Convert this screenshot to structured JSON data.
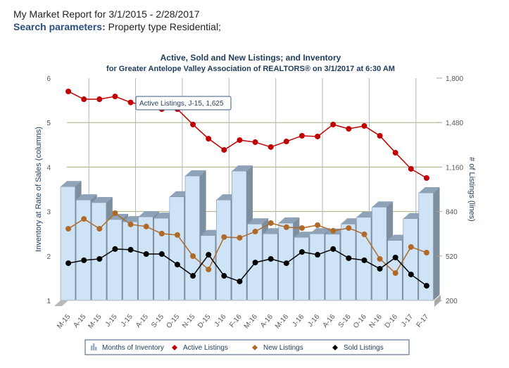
{
  "header": {
    "report_title": "My Market Report for 3/1/2015 - 2/28/2017",
    "search_label": "Search parameters:",
    "search_value": " Property type Residential;"
  },
  "tooltip": {
    "text": "Active Listings, J-15, 1,625"
  },
  "chart_data": {
    "type": "bar",
    "title": "Active, Sold and New Listings; and Inventory",
    "subtitle": "for Greater Antelope Valley Association of REALTORS® on 3/1/2017 at 6:30 AM",
    "ylabel": "Inventory at Rate of Sales (columns)",
    "y2label": "# of Listings (lines)",
    "ylim": [
      1,
      6
    ],
    "y2lim": [
      200,
      1800
    ],
    "yticks": [
      "1",
      "2",
      "3",
      "4",
      "5",
      "6"
    ],
    "y2ticks": [
      "200",
      "520",
      "840",
      "1,160",
      "1,480",
      "1,800"
    ],
    "grid": true,
    "legend_position": "bottom",
    "categories": [
      "M-15",
      "A-15",
      "M-15",
      "J-15",
      "J-15",
      "A-15",
      "S-15",
      "O-15",
      "N-15",
      "D-15",
      "J-16",
      "F-16",
      "M-16",
      "A-16",
      "M-16",
      "J-16",
      "J-16",
      "A-16",
      "S-16",
      "O-16",
      "N-16",
      "D-16",
      "J-17",
      "F-17"
    ],
    "series": [
      {
        "name": "Months of Inventory",
        "type": "bar",
        "axis": "left",
        "color": "#cfe3f7",
        "values": [
          3.56,
          3.26,
          3.2,
          2.82,
          2.77,
          2.88,
          2.85,
          3.33,
          3.8,
          2.46,
          3.26,
          3.91,
          2.72,
          2.5,
          2.74,
          2.42,
          2.5,
          2.49,
          2.72,
          2.87,
          3.1,
          2.35,
          2.84,
          3.42
        ]
      },
      {
        "name": "Active Listings",
        "type": "line",
        "axis": "right",
        "color": "#c00000",
        "values": [
          1704,
          1648,
          1648,
          1668,
          1625,
          1602,
          1577,
          1577,
          1466,
          1364,
          1283,
          1354,
          1339,
          1304,
          1344,
          1385,
          1380,
          1466,
          1435,
          1456,
          1385,
          1263,
          1147,
          1081
        ]
      },
      {
        "name": "New Listings",
        "type": "line",
        "axis": "right",
        "color": "#b06a28",
        "values": [
          716,
          787,
          716,
          828,
          747,
          732,
          681,
          671,
          519,
          423,
          656,
          651,
          696,
          757,
          727,
          721,
          742,
          701,
          721,
          676,
          499,
          397,
          585,
          544
        ]
      },
      {
        "name": "Sold Listings",
        "type": "line",
        "axis": "right",
        "color": "#000000",
        "values": [
          468,
          489,
          499,
          570,
          565,
          534,
          534,
          458,
          377,
          529,
          377,
          337,
          473,
          499,
          468,
          549,
          529,
          570,
          504,
          489,
          428,
          509,
          387,
          306
        ]
      }
    ]
  }
}
